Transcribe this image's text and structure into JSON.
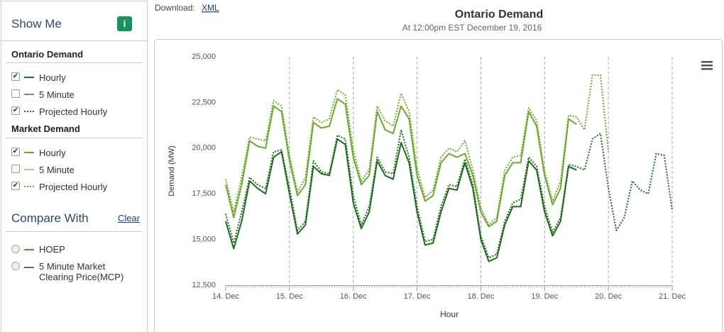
{
  "download": {
    "label": "Download:",
    "link": "XML"
  },
  "sidebar": {
    "title": "Show Me",
    "info_icon": "i",
    "groups": [
      {
        "title": "Ontario Demand",
        "five_minute": {
          "label": "5 Minute",
          "checked": false,
          "color": "#5aa85a"
        }
      },
      {
        "title": "Market Demand",
        "five_minute": {
          "label": "5 Minute",
          "checked": false,
          "color": "#a9d27e"
        }
      }
    ],
    "compare": {
      "title": "Compare With",
      "clear": "Clear",
      "options": [
        {
          "label": "HOEP",
          "color": "#e8501a"
        },
        {
          "label": "5 Minute Market Clearing Price(MCP)",
          "color": "#666666"
        }
      ]
    }
  },
  "chart_data": {
    "type": "line",
    "title": "Ontario Demand",
    "subtitle": "At 12:00pm EST December 19, 2016",
    "x_label": "Hour",
    "y_label": "Demand (MW)",
    "xlim": [
      0,
      168
    ],
    "xticks": [
      {
        "value": 0,
        "label": "14. Dec"
      },
      {
        "value": 24,
        "label": "15. Dec"
      },
      {
        "value": 48,
        "label": "16. Dec"
      },
      {
        "value": 72,
        "label": "17. Dec"
      },
      {
        "value": 96,
        "label": "18. Dec"
      },
      {
        "value": 120,
        "label": "19. Dec"
      },
      {
        "value": 144,
        "label": "20. Dec"
      },
      {
        "value": 168,
        "label": "21. Dec"
      }
    ],
    "ylim": [
      12500,
      25000
    ],
    "yticks": [
      {
        "value": 12500,
        "label": "12,500"
      },
      {
        "value": 15000,
        "label": "15,000"
      },
      {
        "value": 17500,
        "label": "17,500"
      },
      {
        "value": 20000,
        "label": "20,000"
      },
      {
        "value": 22500,
        "label": "22,500"
      },
      {
        "value": 25000,
        "label": "25,000"
      }
    ],
    "x_grid": true,
    "x": [
      0,
      3,
      6,
      9,
      12,
      15,
      18,
      21,
      24,
      27,
      30,
      33,
      36,
      39,
      42,
      45,
      48,
      51,
      54,
      57,
      60,
      63,
      66,
      69,
      72,
      75,
      78,
      81,
      84,
      87,
      90,
      93,
      96,
      99,
      102,
      105,
      108,
      111,
      114,
      117,
      120,
      123,
      126,
      129,
      132,
      135,
      138,
      141,
      144,
      147,
      150,
      153,
      156,
      159,
      162,
      165,
      168
    ],
    "series": [
      {
        "name": "Hourly",
        "color": "#1b6e1b",
        "dashed": false,
        "values": [
          16000,
          14500,
          16000,
          18200,
          17800,
          17500,
          19500,
          19800,
          17500,
          15300,
          15800,
          19000,
          18600,
          18500,
          20500,
          20200,
          17000,
          15600,
          16500,
          19300,
          18500,
          18300,
          20300,
          19200,
          16500,
          14700,
          14800,
          16500,
          17800,
          17700,
          19200,
          17800,
          15000,
          13800,
          14000,
          15800,
          16800,
          16800,
          19300,
          18800,
          16500,
          15200,
          16000,
          19000,
          18800,
          null,
          null,
          null,
          null,
          null,
          null,
          null,
          null,
          null,
          null,
          null,
          null
        ]
      },
      {
        "name": "Projected Hourly",
        "color": "#1b6e1b",
        "dashed": true,
        "values": [
          16400,
          14800,
          16500,
          18400,
          18000,
          17800,
          19800,
          19900,
          17800,
          15500,
          16000,
          19300,
          18700,
          18600,
          20700,
          20500,
          17400,
          15800,
          16800,
          19500,
          18700,
          18600,
          21000,
          19500,
          16800,
          14900,
          15000,
          16800,
          18000,
          17900,
          19400,
          18000,
          15200,
          14000,
          14200,
          16000,
          17000,
          17200,
          19500,
          19000,
          16800,
          15400,
          16200,
          19100,
          19000,
          18800,
          20500,
          20800,
          17800,
          15500,
          16200,
          18200,
          17700,
          17500,
          19700,
          19600,
          16600
        ]
      },
      {
        "name": "Hourly",
        "color": "#6aab2c",
        "dashed": false,
        "values": [
          18000,
          16200,
          18000,
          20400,
          20100,
          20000,
          22300,
          22000,
          19300,
          17400,
          18000,
          21400,
          21100,
          21200,
          22700,
          22400,
          19500,
          18000,
          18500,
          22000,
          21000,
          20800,
          22300,
          21600,
          18500,
          17100,
          17400,
          19200,
          19700,
          19500,
          19700,
          18500,
          16500,
          15700,
          16000,
          18500,
          19200,
          19200,
          22000,
          21200,
          18500,
          16900,
          17800,
          21600,
          21300,
          null,
          null,
          null,
          null,
          null,
          null,
          null,
          null,
          null,
          null,
          null,
          null
        ]
      },
      {
        "name": "Projected Hourly",
        "color": "#6aab2c",
        "dashed": true,
        "values": [
          18300,
          16500,
          18400,
          20600,
          20500,
          20400,
          22600,
          22300,
          19600,
          17600,
          18400,
          21700,
          21400,
          21600,
          23200,
          22900,
          19900,
          18200,
          18800,
          22300,
          21500,
          21200,
          23000,
          22000,
          18900,
          17300,
          17700,
          19500,
          20000,
          19800,
          20400,
          18800,
          16700,
          15800,
          16200,
          18800,
          19500,
          19600,
          22200,
          21500,
          18700,
          17100,
          18200,
          21800,
          21700,
          21000,
          24000,
          24000,
          19800,
          null,
          null,
          null,
          null,
          null,
          null,
          null,
          null
        ]
      }
    ]
  }
}
